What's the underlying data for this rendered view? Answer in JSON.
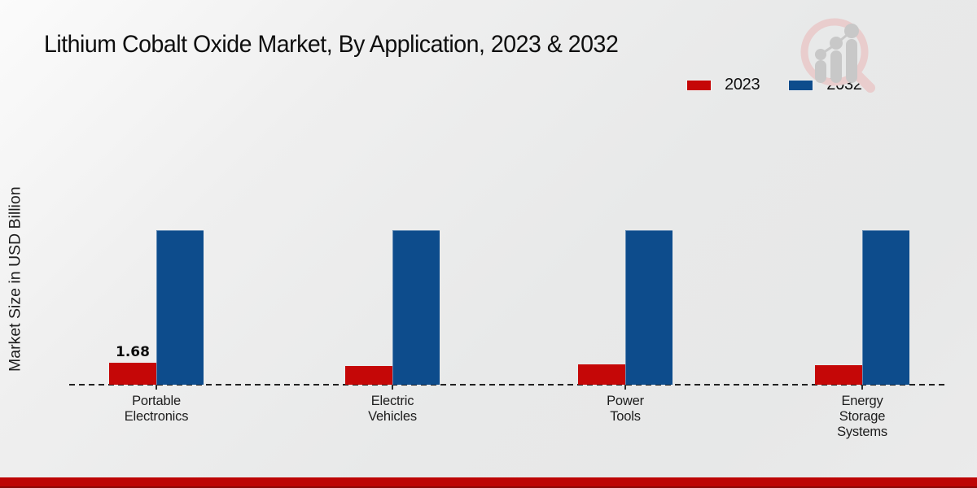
{
  "title": "Lithium Cobalt Oxide Market, By Application, 2023 & 2032",
  "y_axis_label": "Market Size in USD Billion",
  "legend": {
    "items": [
      {
        "label": "2023",
        "color": "#c50707"
      },
      {
        "label": "2032",
        "color": "#0d4c8c"
      }
    ]
  },
  "chart_data": {
    "type": "bar",
    "title": "Lithium Cobalt Oxide Market, By Application, 2023 & 2032",
    "ylabel": "Market Size in USD Billion",
    "xlabel": "",
    "categories": [
      "Portable Electronics",
      "Electric Vehicles",
      "Power Tools",
      "Energy Storage Systems"
    ],
    "category_display_lines": [
      [
        "Portable",
        "Electronics"
      ],
      [
        "Electric",
        "Vehicles"
      ],
      [
        "Power",
        "Tools"
      ],
      [
        "Energy",
        "Storage",
        "Systems"
      ]
    ],
    "series": [
      {
        "name": "2023",
        "color": "#c50707",
        "values": [
          1.68,
          1.44,
          1.58,
          1.49
        ]
      },
      {
        "name": "2032",
        "color": "#0d4c8c",
        "values": [
          11.82,
          11.82,
          11.82,
          11.82
        ]
      }
    ],
    "bar_value_labels": [
      "1.68",
      "",
      "",
      ""
    ],
    "value_label_series": "2023",
    "grid": false,
    "baseline_style": "dashed",
    "legend_position": "top-right",
    "note_visible_values": "only first 2023 bar is labeled (1.68); other values estimated from bar heights"
  },
  "footer": {
    "accent_color": "#bd0505"
  },
  "watermark": {
    "name": "magnifier-growth-chart-logo"
  }
}
